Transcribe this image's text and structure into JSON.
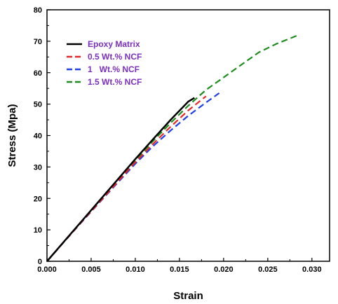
{
  "chart_data": {
    "type": "line",
    "title": "",
    "xlabel": "Strain",
    "ylabel": "Stress (Mpa)",
    "xlim": [
      0,
      0.032
    ],
    "ylim": [
      0,
      80
    ],
    "xticks": [
      0.0,
      0.005,
      0.01,
      0.015,
      0.02,
      0.025,
      0.03
    ],
    "xtick_labels": [
      "0.000",
      "0.005",
      "0.010",
      "0.015",
      "0.020",
      "0.025",
      "0.030"
    ],
    "yticks": [
      0,
      10,
      20,
      30,
      40,
      50,
      60,
      70,
      80
    ],
    "ytick_labels": [
      "0",
      "10",
      "20",
      "30",
      "40",
      "50",
      "60",
      "70",
      "80"
    ],
    "grid": false,
    "legend_position": "top-left",
    "legend_text_color": "#7B2FBE",
    "series": [
      {
        "name": "Epoxy Matrix",
        "color": "#000000",
        "style": "solid",
        "x": [
          0,
          0.002,
          0.004,
          0.006,
          0.008,
          0.01,
          0.012,
          0.014,
          0.016,
          0.0167
        ],
        "y": [
          0,
          6.5,
          13,
          19.5,
          26,
          32.5,
          38.8,
          45,
          50.8,
          52
        ]
      },
      {
        "name": "0.5 Wt.% NCF",
        "color": "#E8262A",
        "style": "dashed",
        "x": [
          0,
          0.002,
          0.004,
          0.006,
          0.008,
          0.01,
          0.012,
          0.014,
          0.016,
          0.018
        ],
        "y": [
          0,
          6.4,
          12.8,
          19,
          25.3,
          31.5,
          37.3,
          42.8,
          48,
          52.5
        ]
      },
      {
        "name": "1   Wt.% NCF",
        "color": "#1F3FE8",
        "style": "dashed",
        "x": [
          0,
          0.002,
          0.004,
          0.006,
          0.008,
          0.01,
          0.012,
          0.014,
          0.016,
          0.018,
          0.0195
        ],
        "y": [
          0,
          6.4,
          12.7,
          18.9,
          25,
          31,
          36.6,
          41.6,
          46.3,
          50.5,
          53.5
        ]
      },
      {
        "name": "1.5 Wt.% NCF",
        "color": "#1E8E1E",
        "style": "dashed",
        "x": [
          0,
          0.002,
          0.004,
          0.006,
          0.008,
          0.01,
          0.012,
          0.014,
          0.016,
          0.018,
          0.02,
          0.022,
          0.024,
          0.026,
          0.0285
        ],
        "y": [
          0,
          6.5,
          13,
          19.4,
          25.7,
          32,
          38.2,
          44,
          49.5,
          54.5,
          58.5,
          62.5,
          66.5,
          69.2,
          72
        ]
      }
    ]
  }
}
